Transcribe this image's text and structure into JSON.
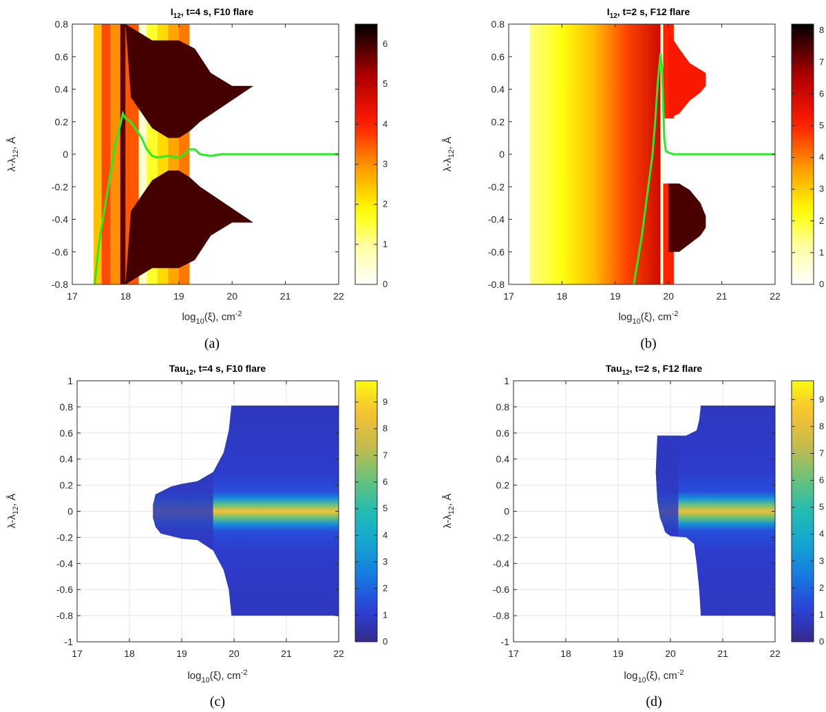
{
  "chart_data": [
    {
      "id": "a",
      "type": "heatmap",
      "caption": "(a)",
      "title": "I_12, t=4 s, F10 flare",
      "title_parts": [
        "I",
        "12",
        ", t=4 s, F10 flare"
      ],
      "xlabel_parts": [
        "log",
        "10",
        "(ξ), cm",
        "-2"
      ],
      "ylabel_parts": [
        "λ-λ",
        "12",
        ", Å"
      ],
      "xlim": [
        17,
        22
      ],
      "ylim": [
        -0.8,
        0.8
      ],
      "xticks": [
        "17",
        "18",
        "19",
        "20",
        "21",
        "22"
      ],
      "yticks": [
        "-0.8",
        "-0.6",
        "-0.4",
        "-0.2",
        "0",
        "0.2",
        "0.4",
        "0.6",
        "0.8"
      ],
      "grid": false,
      "colormap": "hot",
      "clim": [
        0,
        6.5
      ],
      "colorbar_ticks": [
        "0",
        "1",
        "2",
        "3",
        "4",
        "5",
        "6"
      ],
      "colorbar_values": [
        0,
        1,
        2,
        3,
        4,
        5,
        6
      ],
      "line_color": "#22ee22",
      "line": {
        "x": [
          17.42,
          17.5,
          17.6,
          17.7,
          17.8,
          17.9,
          17.95,
          18.0,
          18.1,
          18.2,
          18.3,
          18.4,
          18.5,
          18.6,
          18.8,
          19.0,
          19.1,
          19.2,
          19.3,
          19.4,
          19.6,
          19.8,
          19.9,
          20.5,
          21.0,
          22.0
        ],
        "y": [
          -0.8,
          -0.55,
          -0.35,
          -0.15,
          0.05,
          0.18,
          0.25,
          0.22,
          0.2,
          0.15,
          0.1,
          0.03,
          -0.01,
          -0.02,
          -0.01,
          -0.02,
          0.0,
          0.03,
          0.03,
          0.0,
          -0.01,
          0.0,
          0.0,
          0.0,
          0.0,
          0.0
        ]
      },
      "region": {
        "x_start": 17.4,
        "bands": [
          {
            "x0": 17.4,
            "x1": 17.55,
            "v": 2.5
          },
          {
            "x0": 17.55,
            "x1": 17.72,
            "v": 3.6
          },
          {
            "x0": 17.72,
            "x1": 17.9,
            "v": 3.0
          },
          {
            "x0": 17.9,
            "x1": 18.0,
            "v": 5.8
          },
          {
            "x0": 18.0,
            "x1": 18.25,
            "v": 3.5
          },
          {
            "x0": 18.25,
            "x1": 18.4,
            "v": 0.5
          },
          {
            "x0": 18.4,
            "x1": 18.6,
            "v": 1.6
          },
          {
            "x0": 18.6,
            "x1": 18.8,
            "v": 2.2
          },
          {
            "x0": 18.8,
            "x1": 19.0,
            "v": 2.8
          },
          {
            "x0": 19.0,
            "x1": 19.2,
            "v": 3.2
          }
        ],
        "wing_inner": {
          "x": [
            18.1,
            18.5,
            18.8,
            19.0,
            19.2,
            19.4
          ],
          "y": [
            0.35,
            0.16,
            0.1,
            0.1,
            0.14,
            0.2
          ]
        },
        "wing_outer": {
          "x": [
            18.0,
            18.5,
            19.0,
            19.3,
            19.6,
            20.0,
            20.4
          ],
          "y": [
            0.8,
            0.7,
            0.7,
            0.65,
            0.5,
            0.42,
            0.42
          ]
        },
        "wing_value": 6.0
      }
    },
    {
      "id": "b",
      "type": "heatmap",
      "caption": "(b)",
      "title": "I_12, t=2 s, F12 flare",
      "title_parts": [
        "I",
        "12",
        ", t=2 s, F12 flare"
      ],
      "xlabel_parts": [
        "log",
        "10",
        "(ξ), cm",
        "-2"
      ],
      "ylabel_parts": [
        "λ-λ",
        "12",
        ", Å"
      ],
      "xlim": [
        17,
        22
      ],
      "ylim": [
        -0.8,
        0.8
      ],
      "xticks": [
        "17",
        "18",
        "19",
        "20",
        "21",
        "22"
      ],
      "yticks": [
        "-0.8",
        "-0.6",
        "-0.4",
        "-0.2",
        "0",
        "0.2",
        "0.4",
        "0.6",
        "0.8"
      ],
      "grid": false,
      "colormap": "hot",
      "clim": [
        0,
        8.2
      ],
      "colorbar_ticks": [
        "0",
        "1",
        "2",
        "3",
        "4",
        "5",
        "6",
        "7",
        "8"
      ],
      "colorbar_values": [
        0,
        1,
        2,
        3,
        4,
        5,
        6,
        7,
        8
      ],
      "line_color": "#22ee22",
      "line": {
        "x": [
          19.35,
          19.5,
          19.6,
          19.7,
          19.75,
          19.8,
          19.85,
          19.88,
          19.92,
          19.95,
          20.0,
          20.1,
          20.5,
          21.0,
          22.0
        ],
        "y": [
          -0.8,
          -0.5,
          -0.25,
          0.0,
          0.2,
          0.45,
          0.62,
          0.52,
          0.1,
          0.02,
          0.01,
          0.0,
          0.0,
          0.0,
          0.0
        ]
      },
      "region": {
        "x_start": 17.4,
        "gradient_x": [
          17.4,
          18.0,
          18.6,
          19.2,
          19.85
        ],
        "gradient_v": [
          1.4,
          2.2,
          3.2,
          4.6,
          6.0
        ],
        "gap": {
          "x0": 19.85,
          "x1": 19.9,
          "v": 0.5
        },
        "strip": {
          "x0": 19.9,
          "x1": 20.1,
          "v": 5.0
        },
        "wing_inner": {
          "x": [
            20.0,
            20.2,
            20.4,
            20.6,
            20.7
          ],
          "y": [
            0.22,
            0.25,
            0.33,
            0.38,
            0.42
          ]
        },
        "wing_outer": {
          "x": [
            20.0,
            20.2,
            20.4,
            20.6,
            20.7
          ],
          "y": [
            0.75,
            0.65,
            0.56,
            0.52,
            0.5
          ]
        },
        "wing_inner_low": {
          "x": [
            20.0,
            20.2,
            20.4,
            20.6,
            20.7
          ],
          "y": [
            -0.18,
            -0.18,
            -0.22,
            -0.3,
            -0.38
          ]
        },
        "wing_outer_low": {
          "x": [
            20.0,
            20.2,
            20.4,
            20.6,
            20.7
          ],
          "y": [
            -0.6,
            -0.6,
            -0.55,
            -0.5,
            -0.45
          ]
        },
        "wing_value_top": 5.2,
        "wing_value_bottom": 7.5
      }
    },
    {
      "id": "c",
      "type": "heatmap",
      "caption": "(c)",
      "title": "Tau_12, t=4 s, F10 flare",
      "title_parts": [
        "Tau",
        "12",
        ", t=4 s, F10 flare"
      ],
      "xlabel_parts": [
        "log",
        "10",
        "(ξ), cm",
        "-2"
      ],
      "ylabel_parts": [
        "λ-λ",
        "12",
        ", Å"
      ],
      "xlim": [
        17,
        22
      ],
      "ylim": [
        -1,
        1
      ],
      "xticks": [
        "17",
        "18",
        "19",
        "20",
        "21",
        "22"
      ],
      "yticks": [
        "-1",
        "-0.8",
        "-0.6",
        "-0.4",
        "-0.2",
        "0",
        "0.2",
        "0.4",
        "0.6",
        "0.8",
        "1"
      ],
      "grid": true,
      "colormap": "parula",
      "clim": [
        0,
        9.8
      ],
      "colorbar_ticks": [
        "0",
        "1",
        "2",
        "3",
        "4",
        "5",
        "6",
        "7",
        "8",
        "9"
      ],
      "colorbar_values": [
        0,
        1,
        2,
        3,
        4,
        5,
        6,
        7,
        8,
        9
      ],
      "region": {
        "outline_top": {
          "x": [
            18.45,
            18.5,
            18.6,
            18.8,
            19.0,
            19.3,
            19.6,
            19.8,
            19.9,
            19.95,
            22.0
          ],
          "y": [
            0.05,
            0.13,
            0.15,
            0.19,
            0.21,
            0.23,
            0.3,
            0.45,
            0.62,
            0.81,
            0.81
          ]
        },
        "outline_bottom": {
          "x": [
            22.0,
            19.95,
            19.9,
            19.8,
            19.6,
            19.3,
            19.0,
            18.8,
            18.6,
            18.5,
            18.45
          ],
          "y": [
            -0.8,
            -0.8,
            -0.6,
            -0.45,
            -0.3,
            -0.22,
            -0.21,
            -0.19,
            -0.17,
            -0.12,
            -0.05
          ]
        },
        "core_x0": 19.3,
        "core_peak": 8.6,
        "core_halfwidth": 0.07
      }
    },
    {
      "id": "d",
      "type": "heatmap",
      "caption": "(d)",
      "title": "Tau_12, t=2 s, F12 flare",
      "title_parts": [
        "Tau",
        "12",
        ", t=2 s, F12 flare"
      ],
      "xlabel_parts": [
        "log",
        "10",
        "(ξ), cm",
        "-2"
      ],
      "ylabel_parts": [
        "λ-λ",
        "12",
        ", Å"
      ],
      "xlim": [
        17,
        22
      ],
      "ylim": [
        -1,
        1
      ],
      "xticks": [
        "17",
        "18",
        "19",
        "20",
        "21",
        "22"
      ],
      "yticks": [
        "-1",
        "-0.8",
        "-0.6",
        "-0.4",
        "-0.2",
        "0",
        "0.2",
        "0.4",
        "0.6",
        "0.8",
        "1"
      ],
      "grid": true,
      "colormap": "parula",
      "clim": [
        0,
        9.7
      ],
      "colorbar_ticks": [
        "0",
        "1",
        "2",
        "3",
        "4",
        "5",
        "6",
        "7",
        "8",
        "9"
      ],
      "colorbar_values": [
        0,
        1,
        2,
        3,
        4,
        5,
        6,
        7,
        8,
        9
      ],
      "region": {
        "outline_top": {
          "x": [
            19.75,
            19.72,
            19.75,
            19.85,
            19.9,
            20.0,
            20.3,
            20.5,
            20.55,
            20.58,
            22.0
          ],
          "y": [
            0.08,
            0.3,
            0.58,
            0.58,
            0.58,
            0.58,
            0.58,
            0.62,
            0.7,
            0.81,
            0.81
          ]
        },
        "outline_bottom": {
          "x": [
            22.0,
            20.58,
            20.55,
            20.5,
            20.45,
            20.3,
            20.0,
            19.9,
            19.85,
            19.8,
            19.78,
            19.75
          ],
          "y": [
            -0.8,
            -0.8,
            -0.6,
            -0.4,
            -0.25,
            -0.2,
            -0.19,
            -0.16,
            -0.1,
            -0.05,
            0.0,
            0.08
          ]
        },
        "core_x0": 19.85,
        "core_peak": 8.3,
        "core_halfwidth": 0.07
      }
    }
  ]
}
